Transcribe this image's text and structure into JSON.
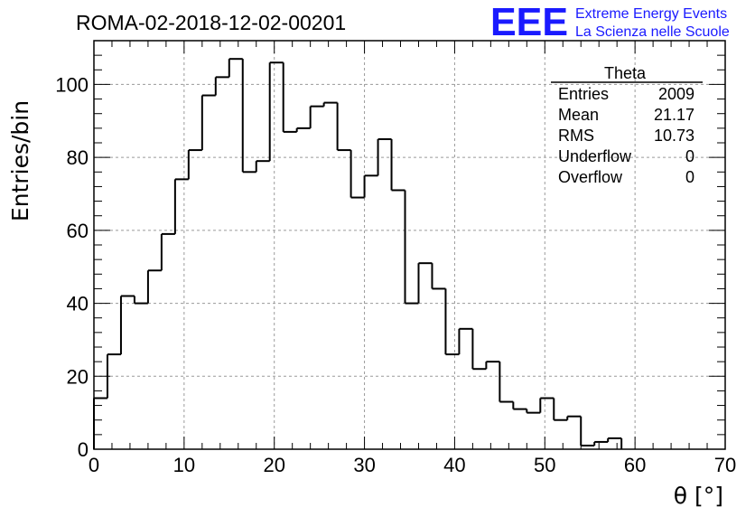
{
  "chart_data": {
    "type": "bar",
    "title": "ROMA-02-2018-12-02-00201",
    "xlabel": "θ [°]",
    "ylabel": "Entries/bin",
    "xlim": [
      0,
      70
    ],
    "ylim": [
      0,
      112
    ],
    "grid": true,
    "bin_width": 1.5,
    "x_start": 0,
    "x_ticks": [
      0,
      10,
      20,
      30,
      40,
      50,
      60,
      70
    ],
    "y_ticks": [
      0,
      20,
      40,
      60,
      80,
      100
    ],
    "values": [
      14,
      26,
      42,
      40,
      49,
      59,
      74,
      82,
      97,
      102,
      107,
      76,
      79,
      106,
      87,
      88,
      94,
      95,
      82,
      69,
      75,
      85,
      71,
      40,
      51,
      44,
      26,
      33,
      22,
      24,
      13,
      11,
      10,
      14,
      8,
      9,
      1,
      2,
      3
    ]
  },
  "stats": {
    "name": "Theta",
    "rows": [
      {
        "label": "Entries",
        "value": "2009"
      },
      {
        "label": "Mean",
        "value": "21.17"
      },
      {
        "label": "RMS",
        "value": "10.73"
      },
      {
        "label": "Underflow",
        "value": "0"
      },
      {
        "label": "Overflow",
        "value": "0"
      }
    ]
  },
  "logo": {
    "mark": "EEE",
    "line1": "Extreme Energy Events",
    "line2": "La Scienza nelle Scuole",
    "color": "#1a1aff"
  }
}
